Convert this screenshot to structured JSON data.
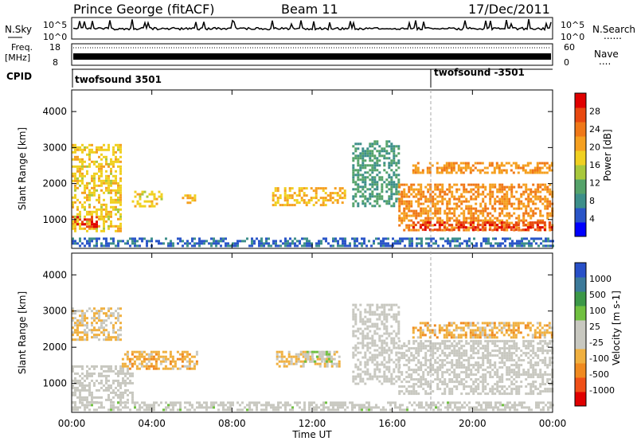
{
  "header": {
    "station": "Prince George (fitACF)",
    "beam": "Beam 11",
    "date": "17/Dec/2011"
  },
  "nsky_panel": {
    "left_label": "N.Sky",
    "right_label": "N.Search",
    "right_dots": "......",
    "tick_top": "10^5",
    "tick_bottom": "10^0"
  },
  "freq_panel": {
    "label_top": "Freq.",
    "label_unit": "[MHz]",
    "tick_top": "18",
    "tick_bottom": "8",
    "right_label": "Nave",
    "right_dots": "....",
    "right_tick_top": "60",
    "right_tick_bottom": "0"
  },
  "cpid_panel": {
    "label": "CPID",
    "segments": [
      {
        "name": "twofsound 3501",
        "start_hour": 0
      },
      {
        "name": "twofsound -3501",
        "start_hour": 18
      }
    ]
  },
  "colors": {
    "power_scale": [
      "#0000ff",
      "#2a55c8",
      "#3d8f8a",
      "#55a36a",
      "#a8c83c",
      "#f0d020",
      "#f5a020",
      "#f07818",
      "#e84810",
      "#e00000"
    ],
    "velocity_scale": [
      "#e00000",
      "#f05018",
      "#f08a20",
      "#f0b040",
      "#c8c8c0",
      "#c8c8c0",
      "#70c040",
      "#3c9848",
      "#3c7a9a",
      "#2850c8"
    ]
  },
  "chart_data": [
    {
      "type": "heatmap",
      "name": "power",
      "ylabel": "Slant Range [km]",
      "colorbar_label": "Power [dB]",
      "colorbar_ticks": [
        "4",
        "8",
        "12",
        "16",
        "20",
        "24",
        "28"
      ],
      "colorbar_range": [
        0,
        32
      ],
      "xlim_hours": [
        0,
        24
      ],
      "ylim": [
        200,
        4600
      ],
      "y_ticks": [
        "1000",
        "2000",
        "3000",
        "4000"
      ],
      "regions": [
        {
          "t0": 0.0,
          "t1": 2.4,
          "r0": 700,
          "r1": 3100,
          "level": 18
        },
        {
          "t0": 0.0,
          "t1": 1.3,
          "r0": 800,
          "r1": 1100,
          "level": 28
        },
        {
          "t0": 3.0,
          "t1": 4.5,
          "r0": 1400,
          "r1": 1800,
          "level": 18
        },
        {
          "t0": 5.5,
          "t1": 6.2,
          "r0": 1500,
          "r1": 1700,
          "level": 20
        },
        {
          "t0": 10.0,
          "t1": 13.6,
          "r0": 1400,
          "r1": 1900,
          "level": 20
        },
        {
          "t0": 14.0,
          "t1": 16.3,
          "r0": 1400,
          "r1": 3200,
          "level": 10
        },
        {
          "t0": 16.3,
          "t1": 24.0,
          "r0": 700,
          "r1": 2000,
          "level": 22
        },
        {
          "t0": 17.0,
          "t1": 24.0,
          "r0": 2300,
          "r1": 2600,
          "level": 22
        },
        {
          "t0": 17.0,
          "t1": 24.0,
          "r0": 700,
          "r1": 950,
          "level": 28
        },
        {
          "t0": 0.0,
          "t1": 24.0,
          "r0": 250,
          "r1": 500,
          "level": 6
        }
      ]
    },
    {
      "type": "heatmap",
      "name": "velocity",
      "ylabel": "Slant Range [km]",
      "colorbar_label": "Velocity [m s-1]",
      "colorbar_ticks": [
        "-1000",
        "-500",
        "-100",
        "-25",
        "25",
        "100",
        "500",
        "1000"
      ],
      "colorbar_range": [
        -1000,
        1000
      ],
      "xlabel": "Time UT",
      "x_ticks": [
        "00:00",
        "04:00",
        "08:00",
        "12:00",
        "16:00",
        "20:00",
        "00:00"
      ],
      "xlim_hours": [
        0,
        24
      ],
      "ylim": [
        200,
        4600
      ],
      "y_ticks": [
        "1000",
        "2000",
        "3000",
        "4000"
      ],
      "regions": [
        {
          "t0": 0.0,
          "t1": 2.4,
          "r0": 2200,
          "r1": 3100,
          "level": -200
        },
        {
          "t0": 0.0,
          "t1": 3.0,
          "r0": 500,
          "r1": 1500,
          "level": 0
        },
        {
          "t0": 2.5,
          "t1": 6.3,
          "r0": 1400,
          "r1": 1900,
          "level": -300
        },
        {
          "t0": 10.2,
          "t1": 13.4,
          "r0": 1500,
          "r1": 1900,
          "level": -200
        },
        {
          "t0": 11.6,
          "t1": 13.0,
          "r0": 1600,
          "r1": 1900,
          "level": 150
        },
        {
          "t0": 14.0,
          "t1": 16.3,
          "r0": 1000,
          "r1": 3200,
          "level": 0
        },
        {
          "t0": 16.3,
          "t1": 24.0,
          "r0": 700,
          "r1": 2200,
          "level": 0
        },
        {
          "t0": 17.0,
          "t1": 24.0,
          "r0": 2300,
          "r1": 2700,
          "level": -300
        },
        {
          "t0": 0.0,
          "t1": 24.0,
          "r0": 250,
          "r1": 500,
          "level": 60
        }
      ]
    }
  ]
}
